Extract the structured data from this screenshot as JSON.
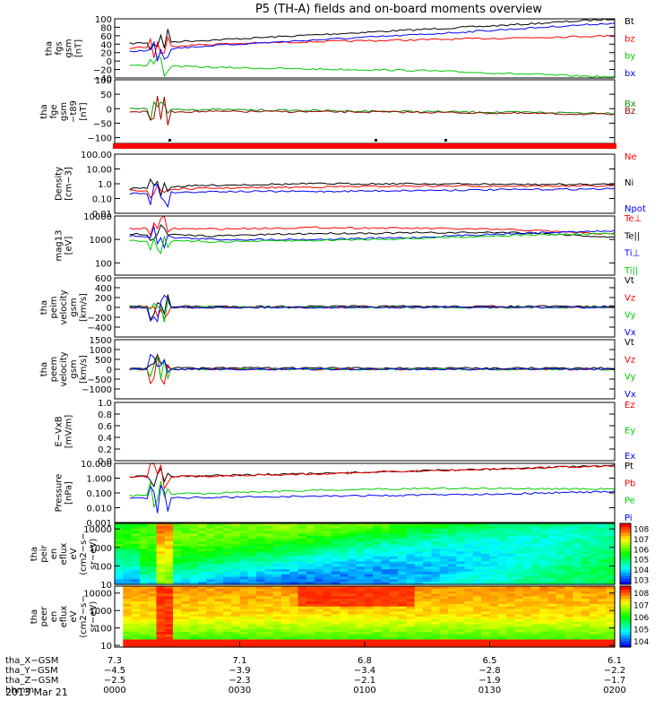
{
  "title": "P5 (TH-A) fields and on-board moments overview",
  "date_label": "2013 Mar 21",
  "colors": {
    "black": "#000000",
    "red": "#ff0000",
    "green": "#00cc00",
    "blue": "#0000ff",
    "darkred": "#990000",
    "darkgreen": "#009900",
    "bar": "#ff0000"
  },
  "chart_data": [
    {
      "type": "line",
      "name": "fgs-gsm",
      "ylabel_lines": [
        "tha",
        "fgs",
        "gsm",
        "[nT]"
      ],
      "ylim": [
        -40,
        100
      ],
      "yticks": [
        -40,
        -20,
        0,
        20,
        40,
        60,
        80,
        100
      ],
      "ytick_labels": [
        "−40",
        "−20",
        "0",
        "20",
        "40",
        "60",
        "80",
        "100"
      ],
      "series": [
        {
          "name": "Bt",
          "color": "black",
          "x": [
            0,
            0.2,
            0.4,
            0.6,
            0.8,
            1.0
          ],
          "y": [
            40,
            50,
            62,
            74,
            86,
            100
          ],
          "spike": 1
        },
        {
          "name": "bz",
          "color": "red",
          "x": [
            0,
            0.2,
            0.4,
            0.6,
            0.8,
            1.0
          ],
          "y": [
            30,
            40,
            46,
            50,
            55,
            60
          ],
          "spike": 1
        },
        {
          "name": "by",
          "color": "green",
          "x": [
            0,
            0.2,
            0.4,
            0.6,
            0.8,
            1.0
          ],
          "y": [
            -8,
            -15,
            -19,
            -22,
            -30,
            -38
          ],
          "spike": 1
        },
        {
          "name": "bx",
          "color": "blue",
          "x": [
            0,
            0.2,
            0.4,
            0.6,
            0.8,
            1.0
          ],
          "y": [
            20,
            37,
            50,
            62,
            76,
            90
          ],
          "spike": 1
        }
      ]
    },
    {
      "type": "line",
      "name": "fge-gsm",
      "ylabel_lines": [
        "tha",
        "fge",
        "gsm",
        "−t89",
        "[nT]"
      ],
      "ylim": [
        -120,
        100
      ],
      "yticks": [
        -100,
        -50,
        0,
        50,
        100
      ],
      "ytick_labels": [
        "−100",
        "−50",
        "0",
        "50",
        "100"
      ],
      "series": [
        {
          "name": "Bx",
          "color": "darkgreen",
          "x": [
            0,
            0.3,
            0.6,
            1.0
          ],
          "y": [
            0,
            -5,
            -10,
            -15
          ],
          "spike": 1
        },
        {
          "name": "Bz",
          "color": "darkred",
          "x": [
            0,
            0.3,
            0.6,
            1.0
          ],
          "y": [
            -10,
            -10,
            -12,
            -20
          ],
          "spike": 1
        }
      ]
    },
    {
      "type": "line",
      "name": "density",
      "log": true,
      "ylabel_lines": [
        "Density",
        "[cm−3]"
      ],
      "ylim": [
        0.01,
        100
      ],
      "yticks": [
        0.01,
        0.1,
        1,
        10,
        100
      ],
      "ytick_labels": [
        "0.01",
        "0.10",
        "1.0",
        "10.00",
        "100.00"
      ],
      "series": [
        {
          "name": "Ne",
          "color": "red",
          "x": [
            0,
            0.2,
            0.4,
            0.6,
            0.8,
            1.0
          ],
          "y": [
            0.3,
            0.5,
            0.6,
            0.7,
            0.7,
            0.7
          ],
          "spike": 1
        },
        {
          "name": "Ni",
          "color": "black",
          "x": [
            0,
            0.2,
            0.4,
            0.6,
            0.8,
            1.0
          ],
          "y": [
            0.4,
            0.8,
            1.0,
            1.0,
            0.9,
            0.9
          ],
          "spike": 1
        },
        {
          "name": "Npot",
          "color": "blue",
          "x": [
            0,
            0.2,
            0.4,
            0.6,
            0.8,
            1.0
          ],
          "y": [
            0.2,
            0.3,
            0.3,
            0.35,
            0.4,
            0.45
          ],
          "spike": 1
        }
      ]
    },
    {
      "type": "line",
      "name": "temperature",
      "log": true,
      "ylabel_lines": [
        "mag13",
        "[eV]"
      ],
      "ylim": [
        30,
        10000
      ],
      "yticks": [
        100,
        1000,
        10000
      ],
      "ytick_labels": [
        "100",
        "1000",
        "10000"
      ],
      "series": [
        {
          "name": "Te⊥",
          "color": "red",
          "x": [
            0,
            0.2,
            0.4,
            0.6,
            0.8,
            1.0
          ],
          "y": [
            3000,
            2800,
            3200,
            3000,
            2600,
            1600
          ],
          "spike": 1
        },
        {
          "name": "Te||",
          "color": "black",
          "x": [
            0,
            0.2,
            0.4,
            0.6,
            0.8,
            1.0
          ],
          "y": [
            1800,
            1400,
            1800,
            1900,
            2000,
            1200
          ],
          "spike": 1
        },
        {
          "name": "Ti⊥",
          "color": "blue",
          "x": [
            0,
            0.2,
            0.4,
            0.6,
            0.8,
            1.0
          ],
          "y": [
            1500,
            1000,
            1000,
            1200,
            1800,
            2300
          ],
          "spike": 1
        },
        {
          "name": "Ti||",
          "color": "green",
          "x": [
            0,
            0.2,
            0.4,
            0.6,
            0.8,
            1.0
          ],
          "y": [
            900,
            800,
            900,
            1100,
            1500,
            1800
          ],
          "spike": 1
        }
      ]
    },
    {
      "type": "line",
      "name": "peim-velocity",
      "ylabel_lines": [
        "tha",
        "peim",
        "velocity",
        "gsm",
        "[km/s]"
      ],
      "ylim": [
        -600,
        600
      ],
      "yticks": [
        -400,
        -200,
        0,
        200,
        400,
        600
      ],
      "ytick_labels": [
        "−400",
        "−200",
        "0",
        "200",
        "400",
        "600"
      ],
      "series": [
        {
          "name": "Vt",
          "color": "black",
          "x": [
            0,
            1.0
          ],
          "y": [
            20,
            20
          ],
          "spike": 1
        },
        {
          "name": "Vz",
          "color": "red",
          "x": [
            0,
            1.0
          ],
          "y": [
            0,
            0
          ],
          "spike": 1
        },
        {
          "name": "Vy",
          "color": "green",
          "x": [
            0,
            1.0
          ],
          "y": [
            0,
            0
          ],
          "spike": 1
        },
        {
          "name": "Vx",
          "color": "blue",
          "x": [
            0,
            1.0
          ],
          "y": [
            0,
            0
          ],
          "spike": 1
        }
      ]
    },
    {
      "type": "line",
      "name": "peem-velocity",
      "ylabel_lines": [
        "tha",
        "peem",
        "velocity",
        "gsm",
        "[km/s]"
      ],
      "ylim": [
        -1500,
        1500
      ],
      "yticks": [
        -1000,
        -500,
        0,
        500,
        1000,
        1500
      ],
      "ytick_labels": [
        "−1000",
        "−500",
        "0",
        "500",
        "1000",
        "1500"
      ],
      "series": [
        {
          "name": "Vt",
          "color": "black",
          "x": [
            0,
            1.0
          ],
          "y": [
            60,
            60
          ],
          "spike": 1
        },
        {
          "name": "Vz",
          "color": "red",
          "x": [
            0,
            1.0
          ],
          "y": [
            0,
            0
          ],
          "spike": 1
        },
        {
          "name": "Vy",
          "color": "green",
          "x": [
            0,
            1.0
          ],
          "y": [
            0,
            0
          ],
          "spike": 1
        },
        {
          "name": "Vx",
          "color": "blue",
          "x": [
            0,
            1.0
          ],
          "y": [
            0,
            0
          ],
          "spike": 1
        }
      ]
    },
    {
      "type": "line",
      "name": "e-vxb",
      "ylabel_lines": [
        "E−VxB",
        "[mV/m]"
      ],
      "ylim": [
        0,
        1
      ],
      "yticks": [
        0,
        0.2,
        0.4,
        0.6,
        0.8,
        1.0
      ],
      "ytick_labels": [
        "0.0",
        "0.2",
        "0.4",
        "0.6",
        "0.8",
        "1.0"
      ],
      "series": [
        {
          "name": "Ez",
          "color": "red",
          "x": [],
          "y": []
        },
        {
          "name": "Ey",
          "color": "green",
          "x": [],
          "y": []
        },
        {
          "name": "Ex",
          "color": "blue",
          "x": [],
          "y": []
        }
      ]
    },
    {
      "type": "line",
      "name": "pressure",
      "log": true,
      "ylabel_lines": [
        "Pressure",
        "[nPa]"
      ],
      "ylim": [
        0.001,
        10
      ],
      "yticks": [
        0.001,
        0.01,
        0.1,
        1,
        10
      ],
      "ytick_labels": [
        "0.001",
        "0.010",
        "0.100",
        "1.000",
        "10.000"
      ],
      "series": [
        {
          "name": "Pt",
          "color": "black",
          "x": [
            0,
            0.2,
            0.4,
            0.6,
            0.8,
            1.0
          ],
          "y": [
            1.2,
            1.5,
            2.0,
            3.0,
            4.5,
            7.0
          ],
          "spike": 1
        },
        {
          "name": "Pb",
          "color": "red",
          "x": [
            0,
            0.2,
            0.4,
            0.6,
            0.8,
            1.0
          ],
          "y": [
            1.1,
            1.4,
            1.9,
            2.9,
            4.4,
            6.8
          ],
          "spike": 1
        },
        {
          "name": "Pe",
          "color": "green",
          "x": [
            0,
            0.2,
            0.4,
            0.6,
            0.8,
            1.0
          ],
          "y": [
            0.06,
            0.1,
            0.15,
            0.2,
            0.2,
            0.18
          ],
          "spike": 1
        },
        {
          "name": "Pi",
          "color": "blue",
          "x": [
            0,
            0.2,
            0.4,
            0.6,
            0.8,
            1.0
          ],
          "y": [
            0.04,
            0.05,
            0.06,
            0.07,
            0.09,
            0.12
          ],
          "spike": 1
        }
      ]
    },
    {
      "type": "heatmap",
      "name": "peir-spectrogram",
      "ylabel_lines": [
        "tha",
        "peir",
        "en",
        "eflux",
        "eV",
        "(cm2−s−",
        "sr−eV)"
      ],
      "ylim": [
        10,
        20000
      ],
      "log": true,
      "yticks": [
        10,
        100,
        1000,
        10000
      ],
      "ytick_labels": [
        "10",
        "100",
        "1000",
        "10000"
      ],
      "colorbar": {
        "labels": [
          "103",
          "104",
          "105",
          "106",
          "107",
          "108"
        ]
      }
    },
    {
      "type": "heatmap",
      "name": "peer-spectrogram",
      "ylabel_lines": [
        "tha",
        "peer",
        "en",
        "eflux",
        "eV",
        "(cm2−s−",
        "sr−eV)"
      ],
      "ylim": [
        8,
        25000
      ],
      "log": true,
      "yticks": [
        10,
        100,
        1000,
        10000
      ],
      "ytick_labels": [
        "10",
        "100",
        "1000",
        "10000"
      ],
      "colorbar": {
        "labels": [
          "104",
          "105",
          "106",
          "107",
          "108"
        ]
      }
    }
  ],
  "x_axis": {
    "row_labels": [
      "tha_X−GSM",
      "tha_Y−GSM",
      "tha_Z−GSM",
      "hhmm"
    ],
    "columns": [
      [
        "7.3",
        "−4.5",
        "−2.5",
        "0000"
      ],
      [
        "7.1",
        "−3.9",
        "−2.3",
        "0030"
      ],
      [
        "6.8",
        "−3.4",
        "−2.1",
        "0100"
      ],
      [
        "6.5",
        "−2.8",
        "−1.9",
        "0130"
      ],
      [
        "6.1",
        "−2.2",
        "−1.7",
        "0200"
      ]
    ]
  }
}
